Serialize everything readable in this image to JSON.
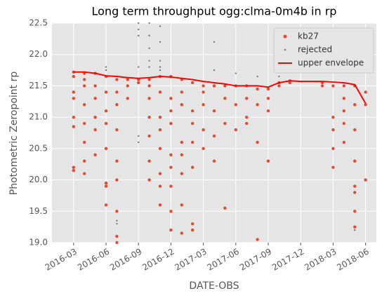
{
  "chart_data": {
    "type": "scatter",
    "title": "Long term throughput  ogg:clma-0m4b in rp",
    "x_label": "DATE-OBS",
    "y_label": "Photometric Zeropoint rp",
    "xlim": [
      "2016-01",
      "2018-07"
    ],
    "xticks": [
      "2016-03",
      "2016-06",
      "2016-09",
      "2016-12",
      "2017-03",
      "2017-06",
      "2017-09",
      "2017-12",
      "2018-03",
      "2018-06"
    ],
    "ylim": [
      19,
      22.5
    ],
    "yticks": [
      {
        "value": 19,
        "label": "19.0"
      },
      {
        "value": 19.5,
        "label": "19.5"
      },
      {
        "value": 20,
        "label": "20.0"
      },
      {
        "value": 20.5,
        "label": "20.5"
      },
      {
        "value": 21,
        "label": "21.0"
      },
      {
        "value": 21.5,
        "label": "21.5"
      },
      {
        "value": 22,
        "label": "22.0"
      },
      {
        "value": 22.5,
        "label": "22.5"
      }
    ],
    "grid": true,
    "legend": "upper right",
    "series": [
      {
        "name": "kb27",
        "color": "#e24a33",
        "kind": "points",
        "x": [
          "2016-03",
          "2016-03",
          "2016-03",
          "2016-03",
          "2016-03",
          "2016-03",
          "2016-03",
          "2016-03",
          "2016-04",
          "2016-04",
          "2016-04",
          "2016-04",
          "2016-04",
          "2016-04",
          "2016-04",
          "2016-04",
          "2016-05",
          "2016-05",
          "2016-05",
          "2016-05",
          "2016-05",
          "2016-05",
          "2016-06",
          "2016-06",
          "2016-06",
          "2016-06",
          "2016-06",
          "2016-06",
          "2016-06",
          "2016-06",
          "2016-07",
          "2016-07",
          "2016-07",
          "2016-07",
          "2016-07",
          "2016-07",
          "2016-07",
          "2016-07",
          "2016-07",
          "2016-08",
          "2016-08",
          "2016-08",
          "2016-09",
          "2016-09",
          "2016-10",
          "2016-10",
          "2016-10",
          "2016-10",
          "2016-10",
          "2016-10",
          "2016-10",
          "2016-11",
          "2016-11",
          "2016-11",
          "2016-11",
          "2016-11",
          "2016-11",
          "2016-11",
          "2016-11",
          "2016-12",
          "2016-12",
          "2016-12",
          "2016-12",
          "2016-12",
          "2016-12",
          "2016-12",
          "2016-12",
          "2016-12",
          "2017-01",
          "2017-01",
          "2017-01",
          "2017-01",
          "2017-01",
          "2017-01",
          "2017-01",
          "2017-01",
          "2017-02",
          "2017-02",
          "2017-02",
          "2017-02",
          "2017-02",
          "2017-02",
          "2017-02",
          "2017-03",
          "2017-03",
          "2017-03",
          "2017-03",
          "2017-03",
          "2017-04",
          "2017-04",
          "2017-04",
          "2017-04",
          "2017-05",
          "2017-05",
          "2017-05",
          "2017-05",
          "2017-06",
          "2017-06",
          "2017-06",
          "2017-07",
          "2017-07",
          "2017-07",
          "2017-07",
          "2017-08",
          "2017-08",
          "2017-08",
          "2017-08",
          "2017-09",
          "2017-09",
          "2017-09",
          "2017-09",
          "2017-10",
          "2017-10",
          "2017-11",
          "2017-11",
          "2018-02",
          "2018-02",
          "2018-03",
          "2018-03",
          "2018-03",
          "2018-03",
          "2018-03",
          "2018-04",
          "2018-04",
          "2018-04",
          "2018-04",
          "2018-04",
          "2018-05",
          "2018-05",
          "2018-05",
          "2018-05",
          "2018-05",
          "2018-05",
          "2018-05",
          "2018-05",
          "2018-06",
          "2018-06",
          "2018-06"
        ],
        "values": [
          21.72,
          21.65,
          21.4,
          21.0,
          20.85,
          20.2,
          20.15,
          21.3,
          21.7,
          21.6,
          21.2,
          20.9,
          20.6,
          20.3,
          21.5,
          20.1,
          21.7,
          21.5,
          21.0,
          20.8,
          20.4,
          21.3,
          21.65,
          21.4,
          21.1,
          20.5,
          19.95,
          19.6,
          20.9,
          19.9,
          21.6,
          21.2,
          20.8,
          20.3,
          19.5,
          19.1,
          19.0,
          20.0,
          21.4,
          21.6,
          21.5,
          21.3,
          21.6,
          21.55,
          21.6,
          21.3,
          21.0,
          20.7,
          20.3,
          20.0,
          21.5,
          21.65,
          21.4,
          21.0,
          20.5,
          20.1,
          19.6,
          19.9,
          20.8,
          21.65,
          21.3,
          20.9,
          20.4,
          19.9,
          19.5,
          19.2,
          20.2,
          21.1,
          21.6,
          21.2,
          20.6,
          20.1,
          19.6,
          19.15,
          20.4,
          21.4,
          21.55,
          21.1,
          20.6,
          20.2,
          19.3,
          19.2,
          20.9,
          21.5,
          21.2,
          20.8,
          20.5,
          21.4,
          21.5,
          21.1,
          20.7,
          20.3,
          21.5,
          21.3,
          20.9,
          19.55,
          21.5,
          21.2,
          20.8,
          21.5,
          21.3,
          21.0,
          20.9,
          21.45,
          21.2,
          20.6,
          19.05,
          21.45,
          21.1,
          20.3,
          21.3,
          21.55,
          21.5,
          21.58,
          21.55,
          21.55,
          21.5,
          21.5,
          21.0,
          20.8,
          20.5,
          20.2,
          21.5,
          21.1,
          20.6,
          21.3,
          20.9,
          21.5,
          21.2,
          20.8,
          20.3,
          19.9,
          19.5,
          19.25,
          19.8,
          21.4,
          21.2,
          20.0
        ]
      },
      {
        "name": "rejected",
        "color": "#777777",
        "kind": "points",
        "x": [
          "2016-06",
          "2016-06",
          "2016-07",
          "2016-07",
          "2016-09",
          "2016-09",
          "2016-09",
          "2016-09",
          "2016-09",
          "2016-09",
          "2016-10",
          "2016-10",
          "2016-10",
          "2016-10",
          "2016-10",
          "2016-11",
          "2016-11",
          "2016-11",
          "2016-11",
          "2016-11",
          "2017-04",
          "2017-04",
          "2017-06",
          "2017-08",
          "2017-10",
          "2018-05"
        ],
        "values": [
          21.8,
          21.75,
          19.3,
          19.35,
          22.4,
          22.5,
          22.3,
          21.8,
          20.6,
          20.7,
          22.3,
          22.5,
          22.1,
          21.9,
          21.8,
          22.45,
          22.2,
          21.9,
          21.8,
          21.75,
          22.2,
          21.75,
          21.7,
          21.65,
          21.65,
          19.2
        ]
      },
      {
        "name": "upper envelope",
        "color": "#ff0000",
        "kind": "line",
        "x": [
          "2016-03",
          "2016-04",
          "2016-05",
          "2016-06",
          "2016-07",
          "2016-08",
          "2016-09",
          "2016-10",
          "2016-11",
          "2016-12",
          "2017-01",
          "2017-02",
          "2017-03",
          "2017-04",
          "2017-05",
          "2017-06",
          "2017-07",
          "2017-08",
          "2017-09",
          "2017-10",
          "2017-11",
          "2017-12",
          "2018-02",
          "2018-03",
          "2018-04",
          "2018-05",
          "2018-06"
        ],
        "values": [
          21.72,
          21.72,
          21.7,
          21.66,
          21.65,
          21.63,
          21.62,
          21.63,
          21.65,
          21.64,
          21.62,
          21.6,
          21.57,
          21.55,
          21.53,
          21.5,
          21.5,
          21.5,
          21.48,
          21.55,
          21.58,
          21.57,
          21.57,
          21.56,
          21.55,
          21.52,
          21.22
        ]
      }
    ]
  }
}
